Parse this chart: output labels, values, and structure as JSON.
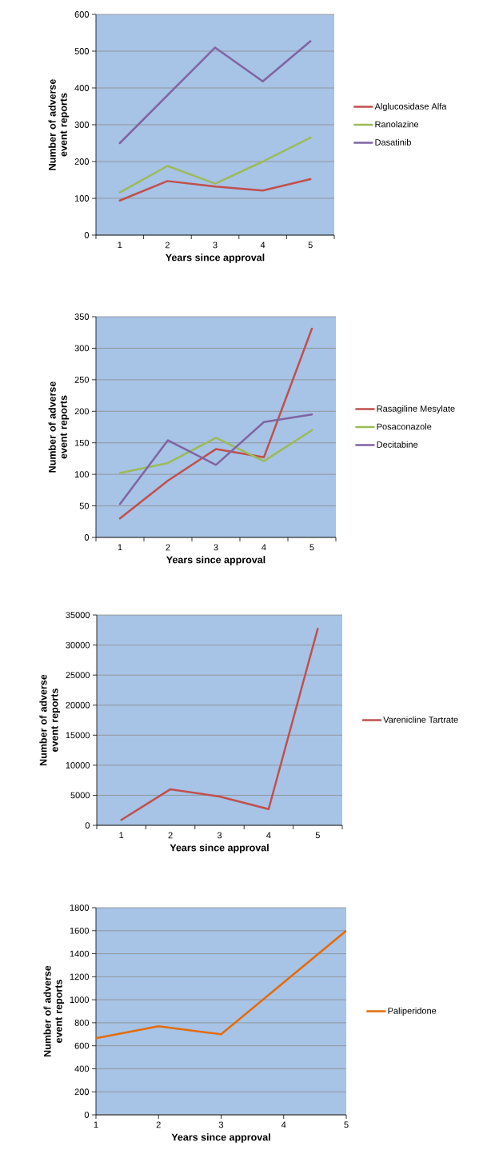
{
  "chart_data": [
    {
      "type": "line",
      "xlabel": "Years since approval",
      "ylabel": "Number of adverse event reports",
      "categories": [
        "1",
        "2",
        "3",
        "4",
        "5"
      ],
      "series": [
        {
          "name": "Alglucosidase Alfa",
          "color": "#c0504d",
          "values": [
            94,
            147,
            132,
            121,
            152
          ]
        },
        {
          "name": "Ranolazine",
          "color": "#9bbb59",
          "values": [
            116,
            188,
            140,
            200,
            265
          ]
        },
        {
          "name": "Dasatinib",
          "color": "#8064a2",
          "values": [
            250,
            380,
            510,
            418,
            527
          ]
        }
      ],
      "ylim": [
        0,
        600
      ],
      "yticks": [
        0,
        100,
        200,
        300,
        400,
        500,
        600
      ],
      "grid": "y",
      "legend": "right",
      "marker": "none",
      "line_style": "solid"
    },
    {
      "type": "line",
      "xlabel": "Years since approval",
      "ylabel": "Number of adverse event reports",
      "categories": [
        "1",
        "2",
        "3",
        "4",
        "5"
      ],
      "series": [
        {
          "name": "Rasagiline Mesylate",
          "color": "#c0504d",
          "values": [
            30,
            90,
            140,
            127,
            331
          ]
        },
        {
          "name": "Posaconazole",
          "color": "#9bbb59",
          "values": [
            102,
            118,
            158,
            121,
            170
          ]
        },
        {
          "name": "Decitabine",
          "color": "#8064a2",
          "values": [
            53,
            154,
            115,
            183,
            195
          ]
        }
      ],
      "ylim": [
        0,
        350
      ],
      "yticks": [
        0,
        50,
        100,
        150,
        200,
        250,
        300,
        350
      ],
      "grid": "y",
      "legend": "right",
      "marker": "none",
      "line_style": "solid"
    },
    {
      "type": "line",
      "xlabel": "Years since approval",
      "ylabel": "Number of adverse event reports",
      "categories": [
        "1",
        "2",
        "3",
        "4",
        "5"
      ],
      "series": [
        {
          "name": "Varenicline Tartrate",
          "color": "#c0504d",
          "values": [
            900,
            6000,
            4800,
            2700,
            32700
          ]
        }
      ],
      "ylim": [
        0,
        35000
      ],
      "yticks": [
        0,
        5000,
        10000,
        15000,
        20000,
        25000,
        30000,
        35000
      ],
      "grid": "y",
      "legend": "right",
      "marker": "none",
      "line_style": "solid"
    },
    {
      "type": "line",
      "xlabel": "Years since approval",
      "ylabel": "Number of adverse event reports",
      "x": [
        1,
        2,
        3,
        4,
        5
      ],
      "series": [
        {
          "name": "Paliperidone",
          "color": "#e46c0a",
          "values": [
            665,
            770,
            700,
            1150,
            1600
          ]
        }
      ],
      "xlim": [
        1,
        5
      ],
      "xticks": [
        1,
        2,
        3,
        4,
        5
      ],
      "ylim": [
        0,
        1800
      ],
      "yticks": [
        0,
        200,
        400,
        600,
        800,
        1000,
        1200,
        1400,
        1600,
        1800
      ],
      "grid": "y",
      "legend": "right",
      "marker": "none",
      "line_style": "solid"
    }
  ]
}
